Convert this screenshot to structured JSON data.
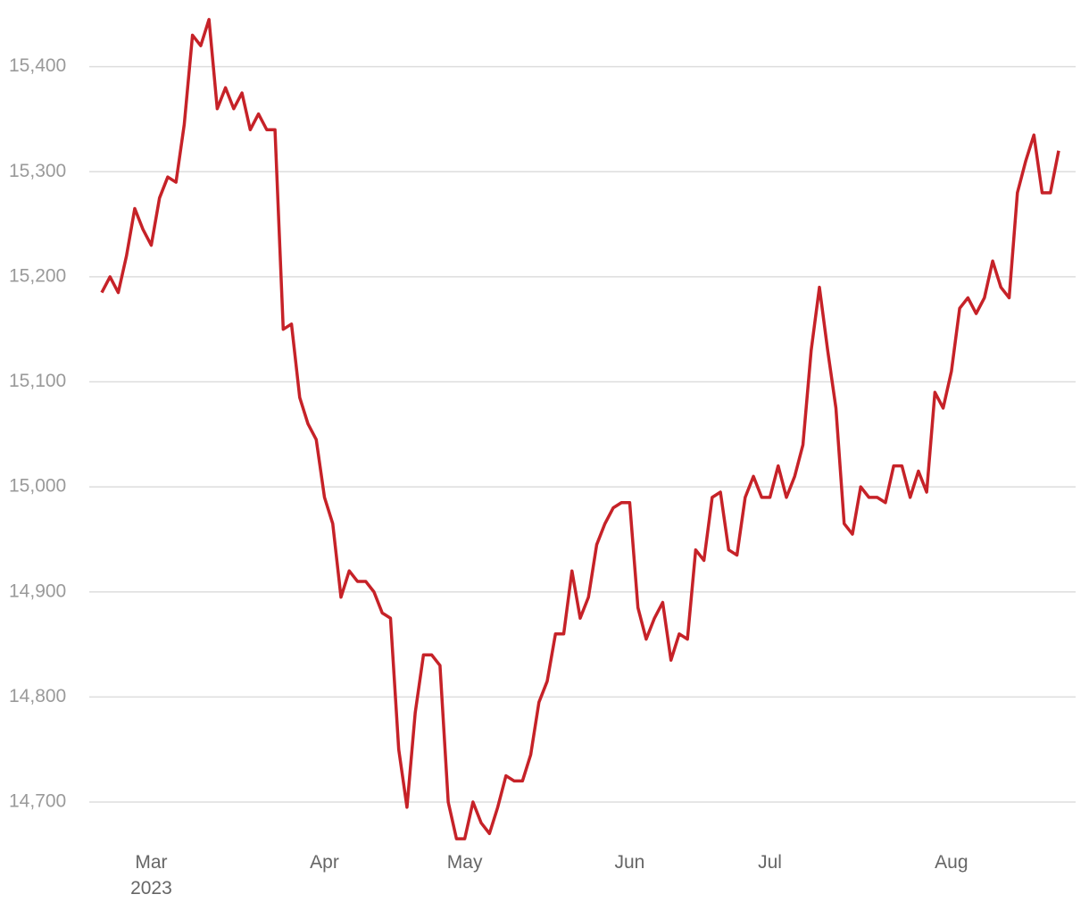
{
  "chart_data": {
    "type": "line",
    "color": "#c62228",
    "grid": true,
    "ylim": [
      14660,
      15455
    ],
    "yticks": [
      {
        "value": 14700,
        "label": "14,700"
      },
      {
        "value": 14800,
        "label": "14,800"
      },
      {
        "value": 14900,
        "label": "14,900"
      },
      {
        "value": 15000,
        "label": "15,000"
      },
      {
        "value": 15100,
        "label": "15,100"
      },
      {
        "value": 15200,
        "label": "15,200"
      },
      {
        "value": 15300,
        "label": "15,300"
      },
      {
        "value": 15400,
        "label": "15,400"
      }
    ],
    "categories": [
      null,
      null,
      null,
      null,
      null,
      null,
      "Mar\n2023",
      null,
      null,
      null,
      null,
      null,
      null,
      null,
      null,
      null,
      null,
      null,
      null,
      null,
      null,
      null,
      null,
      null,
      null,
      null,
      null,
      "Apr",
      null,
      null,
      null,
      null,
      null,
      null,
      null,
      null,
      null,
      null,
      null,
      null,
      null,
      null,
      null,
      null,
      "May",
      null,
      null,
      null,
      null,
      null,
      null,
      null,
      null,
      null,
      null,
      null,
      null,
      null,
      null,
      null,
      null,
      null,
      null,
      null,
      "Jun",
      null,
      null,
      null,
      null,
      null,
      null,
      null,
      null,
      null,
      null,
      null,
      null,
      null,
      null,
      null,
      null,
      "Jul",
      null,
      null,
      null,
      null,
      null,
      null,
      null,
      null,
      null,
      null,
      null,
      null,
      null,
      null,
      null,
      null,
      null,
      null,
      null,
      null,
      null,
      "Aug",
      null,
      null,
      null,
      null,
      null,
      null,
      null,
      null,
      null,
      null,
      null,
      null,
      null
    ],
    "values": [
      15185,
      15200,
      15185,
      15220,
      15265,
      15245,
      15230,
      15275,
      15295,
      15290,
      15345,
      15430,
      15420,
      15445,
      15360,
      15380,
      15360,
      15375,
      15340,
      15355,
      15340,
      15340,
      15150,
      15155,
      15085,
      15060,
      15045,
      14990,
      14965,
      14895,
      14920,
      14910,
      14910,
      14900,
      14880,
      14875,
      14750,
      14695,
      14785,
      14840,
      14840,
      14830,
      14700,
      14665,
      14665,
      14700,
      14680,
      14670,
      14695,
      14725,
      14720,
      14720,
      14745,
      14795,
      14815,
      14860,
      14860,
      14920,
      14875,
      14895,
      14945,
      14965,
      14980,
      14985,
      14985,
      14885,
      14855,
      14875,
      14890,
      14835,
      14860,
      14855,
      14940,
      14930,
      14990,
      14995,
      14940,
      14935,
      14990,
      15010,
      14990,
      14990,
      15020,
      14990,
      15010,
      15040,
      15130,
      15190,
      15130,
      15075,
      14965,
      14955,
      15000,
      14990,
      14990,
      14985,
      15020,
      15020,
      14990,
      15015,
      14995,
      15090,
      15075,
      15110,
      15170,
      15180,
      15165,
      15180,
      15215,
      15190,
      15180,
      15280,
      15310,
      15335,
      15280,
      15280,
      15320
    ]
  }
}
